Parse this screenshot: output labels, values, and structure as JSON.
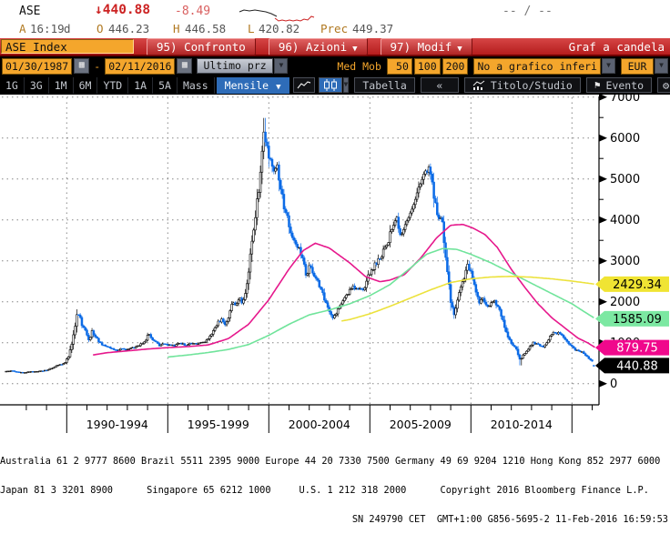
{
  "header": {
    "symbol": "ASE",
    "direction_arrow": "↓",
    "last_price": "440.88",
    "change": "-8.49",
    "range_placeholder": "-- / --",
    "session_letter": "A",
    "time": "16:19",
    "session_flag": "d",
    "open_label": "O",
    "open": "446.23",
    "high_label": "H",
    "high": "446.58",
    "low_label": "L",
    "low": "420.82",
    "prev_label": "Prec",
    "prev": "449.37"
  },
  "menubar": {
    "title": "ASE Index",
    "buttons": [
      {
        "label": "95) Confronto",
        "dropdown": false
      },
      {
        "label": "96) Azioni",
        "dropdown": true
      },
      {
        "label": "97) Modif",
        "dropdown": true
      }
    ],
    "right_label": "Graf a candela"
  },
  "toolbar_settings": {
    "date_from": "01/30/1987",
    "date_separator": "-",
    "date_to": "02/11/2016",
    "price_type": "Ultimo prz",
    "med_mob_label": "Med Mob",
    "ma_periods": [
      "50",
      "100",
      "200"
    ],
    "lower_chart": "No a grafico inferi",
    "currency": "EUR"
  },
  "toolbar_chart": {
    "range_buttons": [
      "1G",
      "3G",
      "1M",
      "6M",
      "YTD",
      "1A",
      "5A",
      "Mass"
    ],
    "period_selected": "Mensile",
    "table_label": "Tabella",
    "collapse_label": "«",
    "title_study_label": "Titolo/Studio",
    "event_label": "Evento"
  },
  "chart_data": {
    "type": "candlestick",
    "title": "ASE Index, monthly candles, 01/30/1987 - 02/11/2016, EUR",
    "x_axis": {
      "start_year": 1987.0,
      "end_year": 2016.084,
      "major_tick_years": [
        1990,
        1995,
        2000,
        2005,
        2010,
        2015
      ],
      "labels": [
        "1990-1994",
        "1995-1999",
        "2000-2004",
        "2005-2009",
        "2010-2014"
      ],
      "label_center_years": [
        1992.5,
        1997.5,
        2002.5,
        2007.5,
        2012.5
      ]
    },
    "y_axis": {
      "min": 0,
      "max": 7000,
      "tick_step": 1000,
      "ticks": [
        "0",
        "1000",
        "2000",
        "3000",
        "4000",
        "5000",
        "6000",
        "7000"
      ]
    },
    "last_candle": {
      "open": 446.23,
      "high": 446.58,
      "low": 420.82,
      "close": 440.88
    },
    "monthly_close_anchors": [
      [
        1987.0,
        300
      ],
      [
        1987.25,
        315
      ],
      [
        1987.5,
        295
      ],
      [
        1987.75,
        272
      ],
      [
        1988.0,
        280
      ],
      [
        1988.4,
        295
      ],
      [
        1988.8,
        310
      ],
      [
        1989.0,
        330
      ],
      [
        1989.3,
        390
      ],
      [
        1989.6,
        455
      ],
      [
        1989.9,
        500
      ],
      [
        1990.1,
        680
      ],
      [
        1990.3,
        1080
      ],
      [
        1990.5,
        1650
      ],
      [
        1990.6,
        1700
      ],
      [
        1990.75,
        1430
      ],
      [
        1990.9,
        1320
      ],
      [
        1991.1,
        1060
      ],
      [
        1991.25,
        1270
      ],
      [
        1991.4,
        1180
      ],
      [
        1991.6,
        1030
      ],
      [
        1991.8,
        930
      ],
      [
        1992.0,
        890
      ],
      [
        1992.3,
        830
      ],
      [
        1992.5,
        790
      ],
      [
        1992.7,
        860
      ],
      [
        1993.0,
        830
      ],
      [
        1993.3,
        880
      ],
      [
        1993.6,
        930
      ],
      [
        1993.9,
        1060
      ],
      [
        1994.05,
        1210
      ],
      [
        1994.2,
        1120
      ],
      [
        1994.4,
        1000
      ],
      [
        1994.6,
        940
      ],
      [
        1994.8,
        970
      ],
      [
        1995.0,
        950
      ],
      [
        1995.3,
        930
      ],
      [
        1995.6,
        975
      ],
      [
        1995.9,
        945
      ],
      [
        1996.2,
        985
      ],
      [
        1996.5,
        965
      ],
      [
        1996.8,
        1010
      ],
      [
        1997.0,
        1090
      ],
      [
        1997.25,
        1270
      ],
      [
        1997.5,
        1490
      ],
      [
        1997.7,
        1560
      ],
      [
        1997.85,
        1420
      ],
      [
        1998.0,
        1610
      ],
      [
        1998.2,
        2060
      ],
      [
        1998.35,
        1890
      ],
      [
        1998.55,
        2140
      ],
      [
        1998.7,
        1960
      ],
      [
        1998.9,
        2320
      ],
      [
        1999.1,
        3180
      ],
      [
        1999.3,
        3960
      ],
      [
        1999.5,
        4720
      ],
      [
        1999.65,
        5580
      ],
      [
        1999.78,
        6180
      ],
      [
        1999.9,
        5880
      ],
      [
        2000.1,
        5340
      ],
      [
        2000.25,
        5080
      ],
      [
        2000.4,
        5320
      ],
      [
        2000.6,
        4680
      ],
      [
        2000.8,
        4230
      ],
      [
        2001.0,
        3880
      ],
      [
        2001.2,
        3520
      ],
      [
        2001.45,
        3310
      ],
      [
        2001.7,
        3060
      ],
      [
        2001.85,
        2640
      ],
      [
        2002.0,
        2890
      ],
      [
        2002.25,
        2630
      ],
      [
        2002.5,
        2390
      ],
      [
        2002.75,
        2060
      ],
      [
        2002.95,
        1810
      ],
      [
        2003.15,
        1560
      ],
      [
        2003.4,
        1810
      ],
      [
        2003.6,
        1990
      ],
      [
        2003.85,
        2160
      ],
      [
        2004.1,
        2390
      ],
      [
        2004.4,
        2340
      ],
      [
        2004.7,
        2310
      ],
      [
        2004.95,
        2640
      ],
      [
        2005.2,
        2840
      ],
      [
        2005.5,
        3090
      ],
      [
        2005.8,
        3310
      ],
      [
        2006.1,
        3790
      ],
      [
        2006.3,
        4040
      ],
      [
        2006.5,
        3640
      ],
      [
        2006.8,
        3890
      ],
      [
        2007.1,
        4390
      ],
      [
        2007.4,
        4740
      ],
      [
        2007.7,
        5060
      ],
      [
        2007.85,
        5290
      ],
      [
        2008.0,
        5090
      ],
      [
        2008.2,
        4490
      ],
      [
        2008.4,
        4090
      ],
      [
        2008.6,
        3840
      ],
      [
        2008.8,
        2890
      ],
      [
        2009.0,
        1990
      ],
      [
        2009.17,
        1660
      ],
      [
        2009.35,
        2090
      ],
      [
        2009.6,
        2490
      ],
      [
        2009.85,
        2890
      ],
      [
        2010.0,
        2740
      ],
      [
        2010.2,
        2390
      ],
      [
        2010.4,
        1960
      ],
      [
        2010.6,
        2090
      ],
      [
        2010.85,
        1890
      ],
      [
        2011.05,
        2040
      ],
      [
        2011.3,
        1940
      ],
      [
        2011.55,
        1590
      ],
      [
        2011.75,
        1260
      ],
      [
        2011.95,
        1010
      ],
      [
        2012.2,
        890
      ],
      [
        2012.45,
        560
      ],
      [
        2012.6,
        710
      ],
      [
        2012.85,
        870
      ],
      [
        2013.1,
        1000
      ],
      [
        2013.35,
        940
      ],
      [
        2013.6,
        890
      ],
      [
        2013.85,
        1090
      ],
      [
        2014.1,
        1290
      ],
      [
        2014.25,
        1240
      ],
      [
        2014.5,
        1190
      ],
      [
        2014.75,
        1040
      ],
      [
        2015.0,
        890
      ],
      [
        2015.2,
        820
      ],
      [
        2015.45,
        790
      ],
      [
        2015.65,
        680
      ],
      [
        2015.85,
        620
      ],
      [
        2016.0,
        545
      ],
      [
        2016.083,
        440.88
      ]
    ],
    "moving_averages": [
      {
        "name": "MedMob 50",
        "color": "#e6188c",
        "current": 879.75,
        "points": [
          [
            1991.3,
            700
          ],
          [
            1992,
            755
          ],
          [
            1993,
            800
          ],
          [
            1994,
            845
          ],
          [
            1995,
            880
          ],
          [
            1996,
            905
          ],
          [
            1997,
            945
          ],
          [
            1998,
            1100
          ],
          [
            1999,
            1450
          ],
          [
            2000,
            2050
          ],
          [
            2001,
            2800
          ],
          [
            2001.7,
            3250
          ],
          [
            2002.3,
            3430
          ],
          [
            2003,
            3310
          ],
          [
            2004,
            2950
          ],
          [
            2004.8,
            2610
          ],
          [
            2005.5,
            2490
          ],
          [
            2006,
            2530
          ],
          [
            2006.7,
            2660
          ],
          [
            2007.5,
            3060
          ],
          [
            2008.3,
            3560
          ],
          [
            2009,
            3870
          ],
          [
            2009.6,
            3890
          ],
          [
            2010.1,
            3800
          ],
          [
            2010.7,
            3640
          ],
          [
            2011.3,
            3330
          ],
          [
            2012,
            2790
          ],
          [
            2012.7,
            2330
          ],
          [
            2013.3,
            1960
          ],
          [
            2014,
            1610
          ],
          [
            2014.7,
            1340
          ],
          [
            2015.3,
            1110
          ],
          [
            2015.8,
            990
          ],
          [
            2016.15,
            882
          ]
        ]
      },
      {
        "name": "MedMob 100",
        "color": "#70e49b",
        "current": 1585.09,
        "points": [
          [
            1995,
            650
          ],
          [
            1996,
            700
          ],
          [
            1997,
            760
          ],
          [
            1998,
            835
          ],
          [
            1999,
            955
          ],
          [
            2000,
            1180
          ],
          [
            2001,
            1450
          ],
          [
            2002,
            1680
          ],
          [
            2003,
            1800
          ],
          [
            2004,
            1950
          ],
          [
            2005,
            2150
          ],
          [
            2006,
            2420
          ],
          [
            2007,
            2820
          ],
          [
            2007.8,
            3160
          ],
          [
            2008.6,
            3300
          ],
          [
            2009.3,
            3280
          ],
          [
            2010,
            3160
          ],
          [
            2011,
            2950
          ],
          [
            2012,
            2700
          ],
          [
            2013,
            2450
          ],
          [
            2014,
            2200
          ],
          [
            2015,
            1950
          ],
          [
            2015.6,
            1760
          ],
          [
            2016.15,
            1588
          ]
        ]
      },
      {
        "name": "MedMob 200",
        "color": "#ece23c",
        "current": 2429.34,
        "points": [
          [
            2003.6,
            1530
          ],
          [
            2004,
            1565
          ],
          [
            2005,
            1705
          ],
          [
            2006,
            1890
          ],
          [
            2007,
            2090
          ],
          [
            2008,
            2290
          ],
          [
            2009,
            2470
          ],
          [
            2010,
            2560
          ],
          [
            2011,
            2605
          ],
          [
            2012,
            2620
          ],
          [
            2013,
            2600
          ],
          [
            2014,
            2560
          ],
          [
            2015,
            2505
          ],
          [
            2016.15,
            2430
          ]
        ]
      }
    ],
    "price_tags": [
      {
        "value": "2429.34",
        "bg": "#f0e433",
        "fg": "#000000",
        "price": 2429.34
      },
      {
        "value": "1585.09",
        "bg": "#7ce8a2",
        "fg": "#000000",
        "price": 1585.09
      },
      {
        "value": "879.75",
        "bg": "#f0088c",
        "fg": "#ffffff",
        "price": 879.75
      },
      {
        "value": "440.88",
        "bg": "#000000",
        "fg": "#ffffff",
        "price": 440.88
      }
    ],
    "colors": {
      "up_candle_fill": "#ffffff",
      "up_candle_border": "#000000",
      "down_candle": "#0a6ae6",
      "grid": "#858585",
      "axis": "#000000"
    }
  },
  "footer": {
    "line1": "Australia 61 2 9777 8600 Brazil 5511 2395 9000 Europe 44 20 7330 7500 Germany 49 69 9204 1210 Hong Kong 852 2977 6000",
    "line2": "Japan 81 3 3201 8900      Singapore 65 6212 1000     U.S. 1 212 318 2000      Copyright 2016 Bloomberg Finance L.P.",
    "line3": "SN 249790 CET  GMT+1:00 G856-5695-2 11-Feb-2016 16:59:53"
  }
}
